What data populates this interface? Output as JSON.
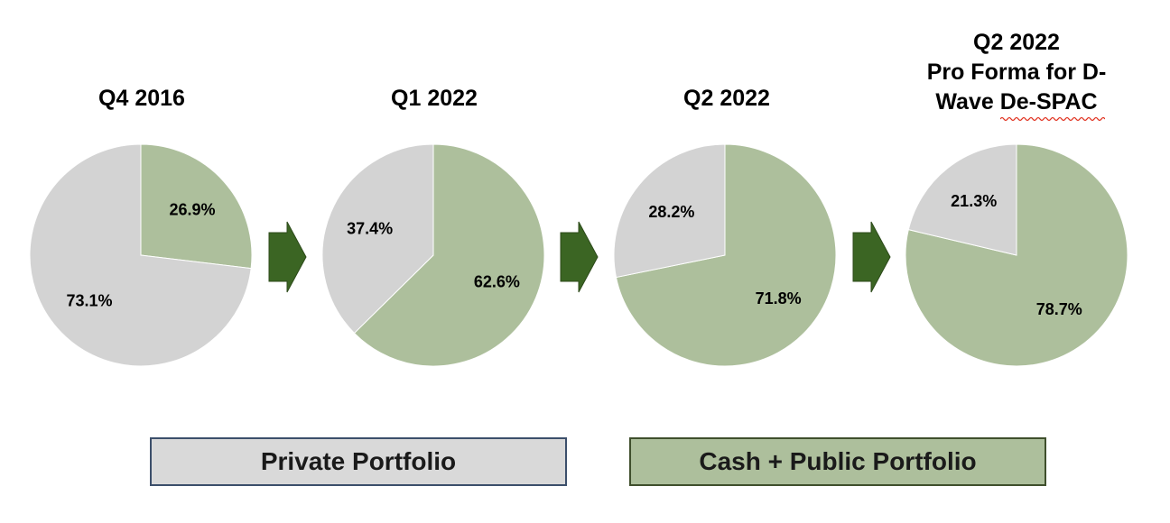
{
  "chart_data": [
    {
      "type": "pie",
      "title": "Q4 2016",
      "slices": [
        {
          "label": "Cash + Public Portfolio",
          "value": 26.9,
          "value_label": "26.9%"
        },
        {
          "label": "Private Portfolio",
          "value": 73.1,
          "value_label": "73.1%"
        }
      ]
    },
    {
      "type": "pie",
      "title": "Q1 2022",
      "slices": [
        {
          "label": "Cash + Public Portfolio",
          "value": 62.6,
          "value_label": "62.6%"
        },
        {
          "label": "Private Portfolio",
          "value": 37.4,
          "value_label": "37.4%"
        }
      ]
    },
    {
      "type": "pie",
      "title": "Q2 2022",
      "slices": [
        {
          "label": "Cash + Public Portfolio",
          "value": 71.8,
          "value_label": "71.8%"
        },
        {
          "label": "Private Portfolio",
          "value": 28.2,
          "value_label": "28.2%"
        }
      ]
    },
    {
      "type": "pie",
      "title_lines": [
        "Q2 2022",
        "Pro Forma for D-",
        "Wave De-SPAC"
      ],
      "slices": [
        {
          "label": "Cash + Public Portfolio",
          "value": 78.7,
          "value_label": "78.7%"
        },
        {
          "label": "Private Portfolio",
          "value": 21.3,
          "value_label": "21.3%"
        }
      ]
    }
  ],
  "legend": {
    "private": "Private Portfolio",
    "public": "Cash + Public Portfolio"
  },
  "colors": {
    "private": "#d3d3d3",
    "public": "#adbf9c",
    "arrow": "#3b6523",
    "arrow_outline": "#2c4a1a"
  }
}
